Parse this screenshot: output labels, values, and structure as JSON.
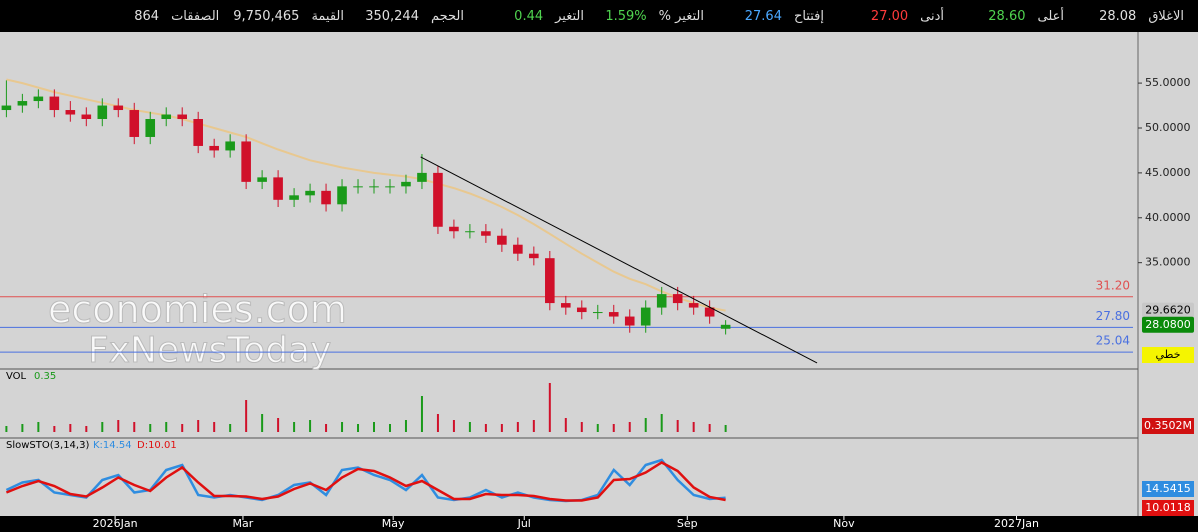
{
  "quote_bar": [
    {
      "label": "الاغلاق",
      "value": "28.08",
      "color": "#e0e0e0"
    },
    {
      "label": "أعلى",
      "value": "28.60",
      "color": "#4fd34f"
    },
    {
      "label": "أدنى",
      "value": "27.00",
      "color": "#ff3b3b"
    },
    {
      "label": "إفتتاح",
      "value": "27.64",
      "color": "#4aa8ff"
    },
    {
      "label": "التغير %",
      "value": "1.59%",
      "color": "#4fd34f"
    },
    {
      "label": "التغير",
      "value": "0.44",
      "color": "#4fd34f"
    },
    {
      "label": "الحجم",
      "value": "350,244",
      "color": "#e0e0e0"
    },
    {
      "label": "القيمة",
      "value": "9,750,465",
      "color": "#e0e0e0"
    },
    {
      "label": "الصفقات",
      "value": "864",
      "color": "#e0e0e0"
    }
  ],
  "watermark": [
    "economies.com",
    "FxNewsToday"
  ],
  "chart_data": {
    "type": "candlestick",
    "x": [
      2,
      7,
      12,
      17,
      22,
      27,
      32,
      37,
      42,
      47,
      52,
      57,
      62,
      67,
      72,
      77,
      82,
      87,
      92,
      97,
      102,
      107,
      112,
      117,
      122,
      127,
      132,
      137,
      142,
      147,
      152,
      157,
      162,
      167,
      172,
      177,
      182,
      187,
      192,
      197,
      202,
      207,
      212,
      217,
      222,
      227
    ],
    "open": [
      52,
      52.5,
      53,
      53.5,
      52,
      51.5,
      51,
      52.5,
      52,
      49,
      51,
      51.5,
      51,
      48,
      47.5,
      48.5,
      44,
      44.5,
      42,
      42.5,
      43,
      41.5,
      43.5,
      43.5,
      43.5,
      43.5,
      44,
      45,
      39,
      38.5,
      38.5,
      38,
      37,
      36,
      35.5,
      30.5,
      30,
      29.5,
      29.5,
      29,
      28,
      30,
      31.5,
      30.5,
      30,
      27.64
    ],
    "high": [
      55.3,
      53.8,
      54.3,
      54.3,
      53,
      52.3,
      53.3,
      53.3,
      52.8,
      51.8,
      52.3,
      52.3,
      51.8,
      48.8,
      49.3,
      49.3,
      45.3,
      45.3,
      43.3,
      43.8,
      43.8,
      44.3,
      44.3,
      44.3,
      44.3,
      44.8,
      47.1,
      45.8,
      39.8,
      39.3,
      39.3,
      38.8,
      37.8,
      36.8,
      36.3,
      31.3,
      30.8,
      30.3,
      30.3,
      29.8,
      30.8,
      32.3,
      32.3,
      31.3,
      30.8,
      28.6
    ],
    "low": [
      51.2,
      51.7,
      52.2,
      51.2,
      50.7,
      50.2,
      50.2,
      51.2,
      48.2,
      48.2,
      50.2,
      50.2,
      47.2,
      46.7,
      46.7,
      43.2,
      43.2,
      41.2,
      41.2,
      41.7,
      40.7,
      40.7,
      42.7,
      42.7,
      42.7,
      42.7,
      43.2,
      38.2,
      37.7,
      37.7,
      37.2,
      36.2,
      35.2,
      34.7,
      29.7,
      29.2,
      28.7,
      28.7,
      28.2,
      27.2,
      27.2,
      29.2,
      29.7,
      29.2,
      28.2,
      27
    ],
    "close": [
      52.5,
      53,
      53.5,
      52,
      51.5,
      51,
      52.5,
      52,
      49,
      51,
      51.5,
      51,
      48,
      47.5,
      48.5,
      44,
      44.5,
      42,
      42.5,
      43,
      41.5,
      43.5,
      43.5,
      43.5,
      43.5,
      44,
      45,
      39,
      38.5,
      38.5,
      38,
      37,
      36,
      35.5,
      30.5,
      30,
      29.5,
      29.5,
      29,
      28,
      30,
      31.5,
      30.5,
      30,
      29,
      28.08
    ],
    "up_color": "#1a9a1a",
    "down_color": "#d0102a",
    "ma": {
      "color": "#e8c890",
      "values": [
        55.4,
        55,
        54.5,
        54,
        53.6,
        53.2,
        52.8,
        52.4,
        52,
        51.7,
        51.4,
        51,
        50.5,
        50,
        49.5,
        49,
        48.3,
        47.6,
        47,
        46.4,
        46,
        45.6,
        45.3,
        45,
        44.8,
        44.6,
        44.3,
        43.8,
        43.3,
        42.7,
        42,
        41.2,
        40.3,
        39.3,
        38.2,
        37.1,
        36,
        35,
        34,
        33.2,
        32.6,
        31.8,
        31.1,
        30.5,
        30,
        29.662
      ]
    },
    "trendline": {
      "x": [
        131.6,
        255.6
      ],
      "y": [
        46.77,
        23.83
      ],
      "color": "#000000"
    },
    "levels": [
      {
        "value": 31.2,
        "label": "31.20",
        "color": "#e05050"
      },
      {
        "value": 27.8,
        "label": "27.80",
        "color": "#4a70e0"
      },
      {
        "value": 25.04,
        "label": "25.04",
        "color": "#4a70e0"
      }
    ],
    "badges": [
      {
        "value": 29.662,
        "label": "29.6620",
        "color": "#c8c8c8",
        "text_color": "#000000"
      },
      {
        "value": 28.08,
        "label": "28.0800",
        "color": "#0a8a0a",
        "text_color": "#ffffff"
      }
    ],
    "mode_button": "خطي",
    "xlim": [
      0,
      356
    ],
    "xticks": [
      {
        "value": 36,
        "label": "2026Jan"
      },
      {
        "value": 76,
        "label": "Mar"
      },
      {
        "value": 123,
        "label": "May"
      },
      {
        "value": 164,
        "label": "Jul"
      },
      {
        "value": 215,
        "label": "Sep"
      },
      {
        "value": 264,
        "label": "Nov"
      },
      {
        "value": 318,
        "label": "2027Jan"
      }
    ],
    "ylim": [
      23.27,
      60.69
    ],
    "yticks": [
      {
        "value": 35,
        "label": "35.0000"
      },
      {
        "value": 40,
        "label": "40.0000"
      },
      {
        "value": 45,
        "label": "45.0000"
      },
      {
        "value": 50,
        "label": "50.0000"
      },
      {
        "value": 55,
        "label": "55.0000"
      }
    ],
    "volume": {
      "title": "VOL",
      "last": "0.35",
      "badge": "0.3502M",
      "ylim": [
        0,
        3
      ],
      "values": [
        0.3,
        0.4,
        0.5,
        0.3,
        0.4,
        0.3,
        0.5,
        0.6,
        0.5,
        0.4,
        0.5,
        0.4,
        0.6,
        0.5,
        0.4,
        1.6,
        0.9,
        0.7,
        0.5,
        0.6,
        0.4,
        0.5,
        0.4,
        0.5,
        0.4,
        0.6,
        1.8,
        0.9,
        0.6,
        0.5,
        0.4,
        0.4,
        0.5,
        0.6,
        2.45,
        0.7,
        0.5,
        0.4,
        0.4,
        0.5,
        0.7,
        0.9,
        0.6,
        0.5,
        0.4,
        0.35
      ]
    },
    "stochastic": {
      "title": "SlowSTO(3,14,3)",
      "ylim": [
        0,
        100
      ],
      "series": [
        {
          "name": "K:14.54",
          "badge": "14.5415",
          "color": "#2f8de0",
          "values": [
            30,
            45,
            50,
            25,
            20,
            15,
            50,
            60,
            25,
            30,
            70,
            80,
            20,
            15,
            20,
            15,
            10,
            20,
            40,
            45,
            20,
            70,
            75,
            60,
            50,
            30,
            60,
            15,
            10,
            15,
            30,
            15,
            25,
            15,
            10,
            8,
            10,
            20,
            70,
            40,
            80,
            90,
            50,
            20,
            12,
            14.54
          ]
        },
        {
          "name": "D:10.01",
          "badge": "10.0118",
          "color": "#e01010",
          "values": [
            25,
            38,
            48,
            38,
            22,
            17,
            35,
            55,
            40,
            28,
            55,
            75,
            45,
            18,
            18,
            17,
            12,
            17,
            32,
            43,
            30,
            55,
            72,
            68,
            55,
            38,
            48,
            30,
            12,
            12,
            22,
            20,
            20,
            18,
            12,
            9,
            9,
            15,
            50,
            52,
            65,
            85,
            68,
            35,
            16,
            10.01
          ]
        }
      ]
    }
  }
}
